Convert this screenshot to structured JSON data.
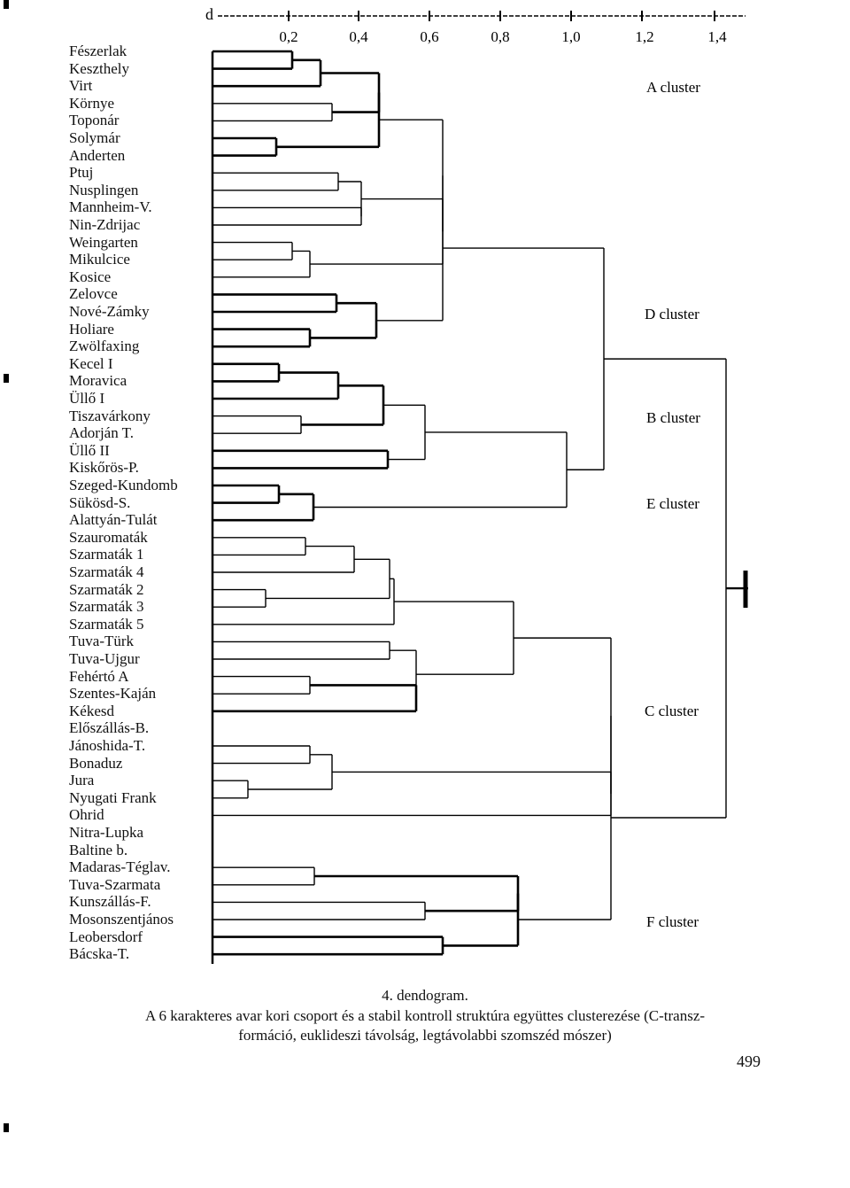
{
  "axis": {
    "symbol": "d",
    "ticks": [
      "0,2",
      "0,4",
      "0,6",
      "0,8",
      "1,0",
      "1,2",
      "1,4"
    ]
  },
  "leaves": [
    "Fészerlak",
    "Keszthely",
    "Virt",
    "Környe",
    "Toponár",
    "Solymár",
    "Anderten",
    "Ptuj",
    "Nusplingen",
    "Mannheim-V.",
    "Nin-Zdrijac",
    "Weingarten",
    "Mikulcice",
    "Kosice",
    "Zelovce",
    "Nové-Zámky",
    "Holiare",
    "Zwölfaxing",
    "Kecel I",
    "Moravica",
    "Üllő I",
    "Tiszavárkony",
    "Adorján T.",
    "Üllő II",
    "Kiskőrös-P.",
    "Szeged-Kundomb",
    "Sükösd-S.",
    "Alattyán-Tulát",
    "Szauromaták",
    "Szarmaták 1",
    "Szarmaták 4",
    "Szarmaták 2",
    "Szarmaták 3",
    "Szarmaták 5",
    "Tuva-Türk",
    "Tuva-Ujgur",
    "Fehértó A",
    "Szentes-Kaján",
    "Kékesd",
    "Előszállás-B.",
    "Jánoshida-T.",
    "Bonaduz",
    "Jura",
    "Nyugati Frank",
    "Ohrid",
    "Nitra-Lupka",
    "Baltine b.",
    "Madaras-Téglav.",
    "Tuva-Szarmata",
    "Kunszállás-F.",
    "Mosonszentjános",
    "Leobersdorf",
    "Bácska-T."
  ],
  "clusters": [
    {
      "label": "A cluster"
    },
    {
      "label": "D cluster"
    },
    {
      "label": "B cluster"
    },
    {
      "label": "E cluster"
    },
    {
      "label": "C cluster"
    },
    {
      "label": "F cluster"
    }
  ],
  "caption": {
    "title": "4. dendogram.",
    "line1": "A 6 karakteres avar kori csoport és a stabil kontroll struktúra együttes clusterezése (C-transz-",
    "line2": "formáció, euklideszi távolság, legtávolabbi szomszéd mószer)"
  },
  "page_number": "499"
}
